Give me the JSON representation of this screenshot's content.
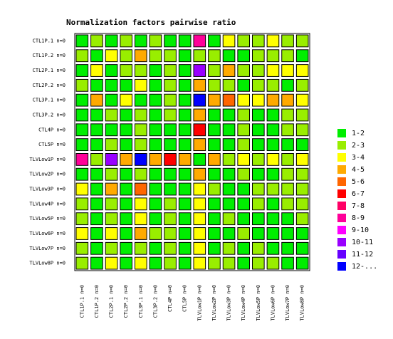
{
  "chart_data": {
    "type": "heatmap",
    "title": "Normalization factors pairwise ratio",
    "x": [
      "CTL1P.1 n=0",
      "CTL1P.2 n=0",
      "CTL2P.1 n=0",
      "CTL2P.2 n=0",
      "CTL3P.1 n=0",
      "CTL3P.2 n=0",
      "CTL4P n=0",
      "CTL5P n=0",
      "TLVLow1P n=0",
      "TLVLow2P n=0",
      "TLVLow3P n=0",
      "TLVLow4P n=0",
      "TLVLow5P n=0",
      "TLVLow6P n=0",
      "TLVLow7P n=0",
      "TLVLow8P n=0"
    ],
    "y": [
      "CTL1P.1 n=0",
      "CTL1P.2 n=0",
      "CTL2P.1 n=0",
      "CTL2P.2 n=0",
      "CTL3P.1 n=0",
      "CTL3P.2 n=0",
      "CTL4P n=0",
      "CTL5P n=0",
      "TLVLow1P n=0",
      "TLVLow2P n=0",
      "TLVLow3P n=0",
      "TLVLow4P n=0",
      "TLVLow5P n=0",
      "TLVLow6P n=0",
      "TLVLow7P n=0",
      "TLVLow8P n=0"
    ],
    "values": [
      [
        1,
        2.5,
        1.5,
        2.5,
        1.5,
        2.5,
        1.5,
        1.5,
        8.5,
        1.5,
        3.5,
        2.5,
        2.5,
        3.5,
        2.5,
        2.5
      ],
      [
        2.5,
        1,
        3.5,
        2.5,
        4.5,
        2.5,
        2.5,
        1.5,
        2.5,
        2.5,
        1.5,
        1.5,
        2.5,
        2.5,
        2.5,
        1.5
      ],
      [
        1.5,
        3.5,
        1,
        2.5,
        2.5,
        1.5,
        2.5,
        1.5,
        10.5,
        2.5,
        4.5,
        2.5,
        2.5,
        3.5,
        3.5,
        3.5
      ],
      [
        2.5,
        1.5,
        1.5,
        1,
        3.5,
        1.5,
        2.5,
        1.5,
        4.5,
        2.5,
        2.5,
        1.5,
        2.5,
        2.5,
        1.5,
        2.5
      ],
      [
        1.5,
        4.5,
        1.5,
        3.5,
        1,
        1.5,
        2.5,
        1.5,
        12.5,
        4.5,
        5.5,
        3.5,
        3.5,
        4.5,
        4.5,
        3.5
      ],
      [
        1.5,
        1.5,
        2.5,
        1.5,
        2.5,
        1,
        2.5,
        1.5,
        4.5,
        1.5,
        1.5,
        2.5,
        1.5,
        1.5,
        2.5,
        2.5
      ],
      [
        1.5,
        1.5,
        1.5,
        1.5,
        2.5,
        1.5,
        1,
        1.5,
        6.5,
        1.5,
        1.5,
        2.5,
        1.5,
        1.5,
        2.5,
        2.5
      ],
      [
        1.5,
        1.5,
        2.5,
        1.5,
        2.5,
        1.5,
        1.5,
        1,
        4.5,
        1.5,
        1.5,
        2.5,
        1.5,
        1.5,
        1.5,
        1.5
      ],
      [
        8.5,
        2.5,
        10.5,
        4.5,
        12.5,
        4.5,
        6.5,
        4.5,
        1,
        4.5,
        2.5,
        3.5,
        2.5,
        3.5,
        2.5,
        3.5
      ],
      [
        1.5,
        1.5,
        2.5,
        1.5,
        2.5,
        1.5,
        1.5,
        1.5,
        4.5,
        1,
        1.5,
        2.5,
        1.5,
        1.5,
        2.5,
        2.5
      ],
      [
        3.5,
        1.5,
        4.5,
        1.5,
        5.5,
        1.5,
        1.5,
        1.5,
        3.5,
        2.5,
        1,
        1.5,
        2.5,
        2.5,
        2.5,
        2.5
      ],
      [
        2.5,
        1.5,
        2.5,
        1.5,
        3.5,
        1.5,
        2.5,
        1.5,
        3.5,
        1.5,
        1.5,
        1,
        2.5,
        1.5,
        2.5,
        2.5
      ],
      [
        2.5,
        1.5,
        2.5,
        1.5,
        3.5,
        1.5,
        2.5,
        1.5,
        3.5,
        1.5,
        2.5,
        1.5,
        1,
        1.5,
        1.5,
        2.5
      ],
      [
        3.5,
        1.5,
        3.5,
        1.5,
        4.5,
        2.5,
        2.5,
        1.5,
        3.5,
        1.5,
        1.5,
        2.5,
        1.5,
        1,
        1.5,
        1.5
      ],
      [
        2.5,
        1.5,
        2.5,
        1.5,
        2.5,
        1.5,
        2.5,
        1.5,
        3.5,
        1.5,
        2.5,
        1.5,
        2.5,
        1.5,
        1,
        1.5
      ],
      [
        2.5,
        1.5,
        3.5,
        1.5,
        3.5,
        1.5,
        2.5,
        1.5,
        3.5,
        2.5,
        2.5,
        1.5,
        2.5,
        2.5,
        1.5,
        1
      ]
    ],
    "legend": [
      {
        "label": "1-2",
        "min": 1,
        "max": 2,
        "color": "#00ee00"
      },
      {
        "label": "2-3",
        "min": 2,
        "max": 3,
        "color": "#99ee00"
      },
      {
        "label": "3-4",
        "min": 3,
        "max": 4,
        "color": "#ffff00"
      },
      {
        "label": "4-5",
        "min": 4,
        "max": 5,
        "color": "#ffaa00"
      },
      {
        "label": "5-6",
        "min": 5,
        "max": 6,
        "color": "#ff6600"
      },
      {
        "label": "6-7",
        "min": 6,
        "max": 7,
        "color": "#ff0000"
      },
      {
        "label": "7-8",
        "min": 7,
        "max": 8,
        "color": "#ff0066"
      },
      {
        "label": "8-9",
        "min": 8,
        "max": 9,
        "color": "#ff0099"
      },
      {
        "label": "9-10",
        "min": 9,
        "max": 10,
        "color": "#ff00ff"
      },
      {
        "label": "10-11",
        "min": 10,
        "max": 11,
        "color": "#9900ff"
      },
      {
        "label": "11-12",
        "min": 11,
        "max": 12,
        "color": "#6600ff"
      },
      {
        "label": "12-...",
        "min": 12,
        "max": null,
        "color": "#0000ff"
      }
    ]
  }
}
